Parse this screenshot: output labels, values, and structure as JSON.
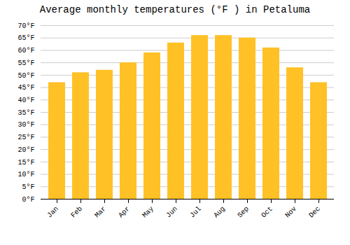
{
  "chart_data": {
    "type": "bar",
    "title": "Average monthly temperatures (°F ) in Petaluma",
    "categories": [
      "Jan",
      "Feb",
      "Mar",
      "Apr",
      "May",
      "Jun",
      "Jul",
      "Aug",
      "Sep",
      "Oct",
      "Nov",
      "Dec"
    ],
    "values": [
      47,
      51,
      52,
      55,
      59,
      63,
      66,
      66,
      65,
      61,
      53,
      47
    ],
    "color": "#FFC125",
    "ylim": [
      0,
      70
    ],
    "yticks": [
      {
        "value": 0,
        "label": "0°F"
      },
      {
        "value": 5,
        "label": "5°F"
      },
      {
        "value": 10,
        "label": "10°F"
      },
      {
        "value": 15,
        "label": "15°F"
      },
      {
        "value": 20,
        "label": "20°F"
      },
      {
        "value": 25,
        "label": "25°F"
      },
      {
        "value": 30,
        "label": "30°F"
      },
      {
        "value": 35,
        "label": "35°F"
      },
      {
        "value": 40,
        "label": "40°F"
      },
      {
        "value": 45,
        "label": "45°F"
      },
      {
        "value": 50,
        "label": "50°F"
      },
      {
        "value": 55,
        "label": "55°F"
      },
      {
        "value": 60,
        "label": "60°F"
      },
      {
        "value": 65,
        "label": "65°F"
      },
      {
        "value": 70,
        "label": "70°F"
      }
    ],
    "grid": true
  }
}
